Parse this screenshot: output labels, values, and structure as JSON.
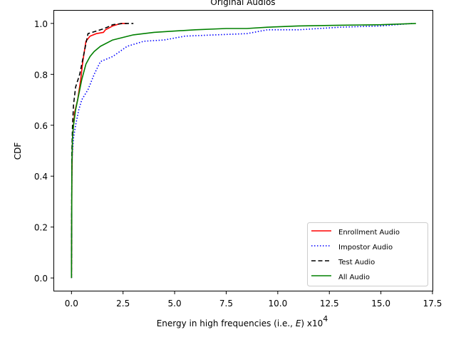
{
  "chart_data": {
    "type": "line",
    "title": "Original Audios",
    "xlabel": "Energy in high frequencies (i.e., E) x10",
    "xlabel_parts": {
      "main": "Energy in high frequencies (i.e., ",
      "italic": "E",
      "after": ") x10",
      "sup": "4"
    },
    "ylabel": "CDF",
    "xlim": [
      -0.84,
      17.5
    ],
    "ylim": [
      -0.05,
      1.05
    ],
    "xticks": [
      0.0,
      2.5,
      5.0,
      7.5,
      10.0,
      12.5,
      15.0,
      17.5
    ],
    "xtick_labels": [
      "0.0",
      "2.5",
      "5.0",
      "7.5",
      "10.0",
      "12.5",
      "15.0",
      "17.5"
    ],
    "yticks": [
      0.0,
      0.2,
      0.4,
      0.6,
      0.8,
      1.0
    ],
    "ytick_labels": [
      "0.0",
      "0.2",
      "0.4",
      "0.6",
      "0.8",
      "1.0"
    ],
    "grid": false,
    "legend_position": "lower-right",
    "series": [
      {
        "name": "Enrollment Audio",
        "color": "#ff0000",
        "dash": "solid",
        "points": [
          [
            0.0,
            0.0
          ],
          [
            0.02,
            0.4
          ],
          [
            0.05,
            0.55
          ],
          [
            0.1,
            0.6
          ],
          [
            0.15,
            0.65
          ],
          [
            0.3,
            0.7
          ],
          [
            0.45,
            0.78
          ],
          [
            0.55,
            0.85
          ],
          [
            0.7,
            0.93
          ],
          [
            0.9,
            0.95
          ],
          [
            1.2,
            0.96
          ],
          [
            1.55,
            0.965
          ],
          [
            1.65,
            0.975
          ],
          [
            2.0,
            0.99
          ],
          [
            2.4,
            1.0
          ],
          [
            2.7,
            1.0
          ]
        ]
      },
      {
        "name": "Impostor Audio",
        "color": "#0000ff",
        "dash": "dotted",
        "points": [
          [
            0.0,
            0.0
          ],
          [
            0.02,
            0.45
          ],
          [
            0.05,
            0.5
          ],
          [
            0.1,
            0.55
          ],
          [
            0.2,
            0.6
          ],
          [
            0.35,
            0.66
          ],
          [
            0.5,
            0.7
          ],
          [
            0.8,
            0.74
          ],
          [
            1.1,
            0.8
          ],
          [
            1.4,
            0.85
          ],
          [
            2.0,
            0.87
          ],
          [
            2.7,
            0.91
          ],
          [
            3.5,
            0.93
          ],
          [
            4.5,
            0.935
          ],
          [
            5.5,
            0.95
          ],
          [
            7.0,
            0.955
          ],
          [
            8.5,
            0.96
          ],
          [
            9.5,
            0.975
          ],
          [
            11.0,
            0.975
          ],
          [
            13.0,
            0.985
          ],
          [
            15.0,
            0.99
          ],
          [
            16.5,
            1.0
          ]
        ]
      },
      {
        "name": "Test Audio",
        "color": "#000000",
        "dash": "dashed",
        "points": [
          [
            0.0,
            0.0
          ],
          [
            0.02,
            0.5
          ],
          [
            0.05,
            0.6
          ],
          [
            0.1,
            0.68
          ],
          [
            0.2,
            0.75
          ],
          [
            0.4,
            0.8
          ],
          [
            0.6,
            0.88
          ],
          [
            0.8,
            0.96
          ],
          [
            1.2,
            0.97
          ],
          [
            1.6,
            0.98
          ],
          [
            2.0,
            0.995
          ],
          [
            2.5,
            1.0
          ],
          [
            3.0,
            1.0
          ]
        ]
      },
      {
        "name": "All Audio",
        "color": "#008000",
        "dash": "solid",
        "points": [
          [
            0.0,
            0.0
          ],
          [
            0.02,
            0.45
          ],
          [
            0.05,
            0.55
          ],
          [
            0.1,
            0.6
          ],
          [
            0.2,
            0.66
          ],
          [
            0.35,
            0.72
          ],
          [
            0.5,
            0.78
          ],
          [
            0.7,
            0.84
          ],
          [
            0.9,
            0.87
          ],
          [
            1.1,
            0.89
          ],
          [
            1.4,
            0.91
          ],
          [
            2.0,
            0.935
          ],
          [
            2.5,
            0.945
          ],
          [
            3.0,
            0.955
          ],
          [
            4.0,
            0.965
          ],
          [
            5.0,
            0.97
          ],
          [
            6.0,
            0.975
          ],
          [
            7.5,
            0.98
          ],
          [
            8.5,
            0.98
          ],
          [
            9.5,
            0.985
          ],
          [
            11.0,
            0.99
          ],
          [
            13.0,
            0.993
          ],
          [
            15.0,
            0.995
          ],
          [
            16.7,
            1.0
          ]
        ]
      }
    ]
  }
}
